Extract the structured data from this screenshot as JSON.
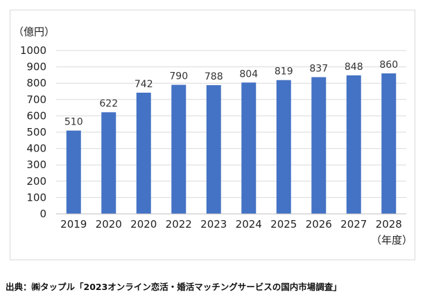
{
  "chart_data": {
    "type": "bar",
    "categories": [
      "2019",
      "2020",
      "2020",
      "2022",
      "2023",
      "2024",
      "2025",
      "2026",
      "2027",
      "2028"
    ],
    "values": [
      510,
      622,
      742,
      790,
      788,
      804,
      819,
      837,
      848,
      860
    ],
    "data_labels": [
      "510",
      "622",
      "742",
      "790",
      "788",
      "804",
      "819",
      "837",
      "848",
      "860"
    ],
    "y_ticks": [
      "0",
      "100",
      "200",
      "300",
      "400",
      "500",
      "600",
      "700",
      "800",
      "900",
      "1000"
    ],
    "ylim": [
      0,
      1000
    ],
    "y_unit": "（億円）",
    "x_unit": "（年度）",
    "grid": true,
    "bar_color": "#4472c4"
  },
  "source": "出典：㈱タップル「2023オンライン恋活・婚活マッチングサービスの国内市場調査」"
}
